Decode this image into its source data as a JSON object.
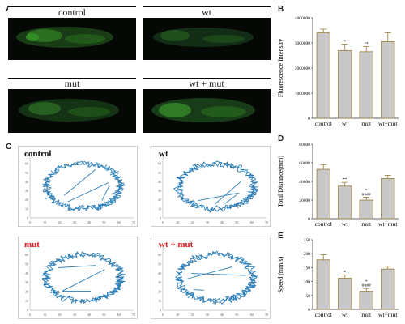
{
  "panels": {
    "a_letter": "A",
    "b_letter": "B",
    "c_letter": "C",
    "d_letter": "D",
    "e_letter": "E",
    "microscopy": [
      {
        "label": "control"
      },
      {
        "label": "wt"
      },
      {
        "label": "mut"
      },
      {
        "label": "wt + mut"
      }
    ],
    "tracks": [
      {
        "label": "control",
        "color": "#111111"
      },
      {
        "label": "wt",
        "color": "#111111"
      },
      {
        "label": "mut",
        "color": "#e02020"
      },
      {
        "label": "wt + mut",
        "color": "#e02020"
      }
    ],
    "track_xticks": [
      "0",
      "10",
      "20",
      "30",
      "40",
      "50",
      "60",
      "70"
    ],
    "track_yticks": [
      "0",
      "10",
      "20",
      "30",
      "40",
      "50",
      "60",
      "70"
    ],
    "track_color": "#2e7fb8"
  },
  "chart_data": [
    {
      "type": "bar",
      "panel": "B",
      "categories": [
        "control",
        "wt",
        "mut",
        "wt+mut"
      ],
      "values": [
        3400000,
        2700000,
        2650000,
        3050000
      ],
      "errors": [
        150000,
        250000,
        200000,
        350000
      ],
      "marks": [
        "",
        "*",
        "**",
        ""
      ],
      "ylabel": "Fluorescence Intensity",
      "ylim": [
        0,
        4000000
      ],
      "yticks": [
        0,
        1000000,
        2000000,
        3000000,
        4000000
      ],
      "yticklabels": [
        "0",
        "1000000",
        "2000000",
        "3000000",
        "4000000"
      ],
      "bar_color": "#c8c8c8",
      "edge_color": "#9a7a3a"
    },
    {
      "type": "bar",
      "panel": "D",
      "categories": [
        "control",
        "wt",
        "mut",
        "wt+mut"
      ],
      "values": [
        53000,
        35000,
        20000,
        43000
      ],
      "errors": [
        5000,
        4000,
        3000,
        3500
      ],
      "marks": [
        "",
        "**",
        "*\n####",
        ""
      ],
      "ylabel": "Total Distance(mm)",
      "ylim": [
        0,
        80000
      ],
      "yticks": [
        0,
        20000,
        40000,
        60000,
        80000
      ],
      "yticklabels": [
        "0",
        "20000",
        "40000",
        "60000",
        "80000"
      ],
      "bar_color": "#c8c8c8",
      "edge_color": "#9a7a3a"
    },
    {
      "type": "bar",
      "panel": "E",
      "categories": [
        "control",
        "wt",
        "mut",
        "wt+mut"
      ],
      "values": [
        178,
        112,
        65,
        145
      ],
      "errors": [
        18,
        12,
        10,
        10
      ],
      "marks": [
        "",
        "*",
        "*\n####",
        ""
      ],
      "ylabel": "Speed (mm/s)",
      "ylim": [
        0,
        250
      ],
      "yticks": [
        0,
        50,
        100,
        150,
        200,
        250
      ],
      "yticklabels": [
        "0",
        "50",
        "100",
        "150",
        "200",
        "250"
      ],
      "bar_color": "#c8c8c8",
      "edge_color": "#9a7a3a"
    }
  ]
}
